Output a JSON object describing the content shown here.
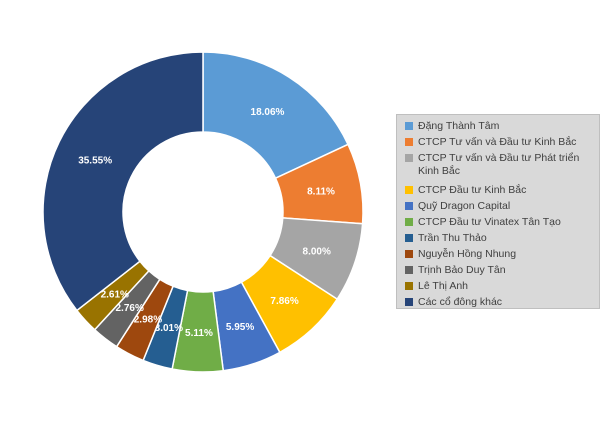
{
  "chart_data": {
    "type": "pie",
    "subtype": "donut",
    "legend_position": "right",
    "slices": [
      {
        "label": "Đặng Thành Tâm",
        "value": 18.06,
        "value_label": "18.06%",
        "color": "#5b9bd5"
      },
      {
        "label": "CTCP Tư vấn và Đầu tư Kinh Bắc",
        "value": 8.11,
        "value_label": "8.11%",
        "color": "#ed7d31"
      },
      {
        "label": "CTCP Tư vấn và Đầu tư Phát triển Kinh Bắc",
        "value": 8.0,
        "value_label": "8.00%",
        "color": "#a5a5a5"
      },
      {
        "label": "CTCP Đầu tư Kinh Bắc",
        "value": 7.86,
        "value_label": "7.86%",
        "color": "#ffc000"
      },
      {
        "label": "Quỹ Dragon Capital",
        "value": 5.95,
        "value_label": "5.95%",
        "color": "#4472c4"
      },
      {
        "label": "CTCP Đầu tư Vinatex Tân Tạo",
        "value": 5.11,
        "value_label": "5.11%",
        "color": "#70ad47"
      },
      {
        "label": "Trần Thu Thảo",
        "value": 3.01,
        "value_label": "3.01%",
        "color": "#255e91"
      },
      {
        "label": "Nguyễn Hồng Nhung",
        "value": 2.98,
        "value_label": "2.98%",
        "color": "#9e480e"
      },
      {
        "label": "Trịnh Bảo Duy Tân",
        "value": 2.76,
        "value_label": "2.76%",
        "color": "#636363"
      },
      {
        "label": "Lê Thị Anh",
        "value": 2.61,
        "value_label": "2.61%",
        "color": "#997300"
      },
      {
        "label": "Các cổ đông khác",
        "value": 35.55,
        "value_label": "35.55%",
        "color": "#264478"
      }
    ]
  }
}
